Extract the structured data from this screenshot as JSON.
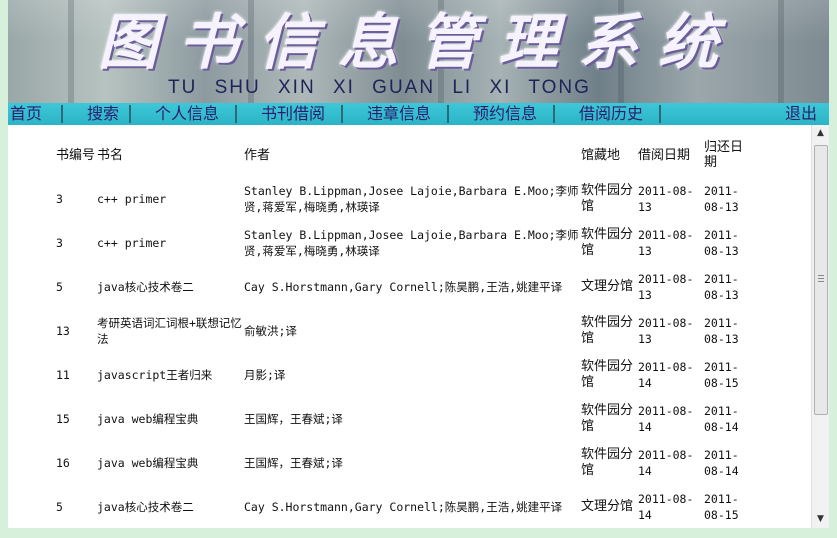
{
  "banner": {
    "title_cn": "图书信息管理系统",
    "title_pinyin": "TU SHU  XIN  XI  GUAN  LI  XI  TONG"
  },
  "nav": {
    "home": "首页",
    "search": "搜索",
    "profile": "个人信息",
    "borrow": "书刊借阅",
    "violations": "违章信息",
    "reservations": "预约信息",
    "history": "借阅历史",
    "logout": "退出"
  },
  "table": {
    "headers": {
      "id": "书编号",
      "title": "书名",
      "author": "作者",
      "library": "馆藏地",
      "borrow_date": "借阅日期",
      "return_date": "归还日期"
    },
    "rows": [
      {
        "id": "3",
        "title": "c++ primer",
        "author": "Stanley B.Lippman,Josee Lajoie,Barbara E.Moo;李师贤,蒋爱军,梅晓勇,林瑛译",
        "library": "软件园分馆",
        "borrow_date": "2011-08-13",
        "return_date": "2011-08-13"
      },
      {
        "id": "3",
        "title": "c++ primer",
        "author": "Stanley B.Lippman,Josee Lajoie,Barbara E.Moo;李师贤,蒋爱军,梅晓勇,林瑛译",
        "library": "软件园分馆",
        "borrow_date": "2011-08-13",
        "return_date": "2011-08-13"
      },
      {
        "id": "5",
        "title": "java核心技术卷二",
        "author": "Cay S.Horstmann,Gary Cornell;陈昊鹏,王浩,姚建平译",
        "library": "文理分馆",
        "borrow_date": "2011-08-13",
        "return_date": "2011-08-13"
      },
      {
        "id": "13",
        "title": "考研英语词汇词根+联想记忆法",
        "author": "俞敏洪;译",
        "library": "软件园分馆",
        "borrow_date": "2011-08-13",
        "return_date": "2011-08-13"
      },
      {
        "id": "11",
        "title": "javascript王者归来",
        "author": "月影;译",
        "library": "软件园分馆",
        "borrow_date": "2011-08-14",
        "return_date": "2011-08-15"
      },
      {
        "id": "15",
        "title": "java web编程宝典",
        "author": "王国辉，王春斌;译",
        "library": "软件园分馆",
        "borrow_date": "2011-08-14",
        "return_date": "2011-08-14"
      },
      {
        "id": "16",
        "title": "java web编程宝典",
        "author": "王国辉，王春斌;译",
        "library": "软件园分馆",
        "borrow_date": "2011-08-14",
        "return_date": "2011-08-14"
      },
      {
        "id": "5",
        "title": "java核心技术卷二",
        "author": "Cay S.Horstmann,Gary Cornell;陈昊鹏,王浩,姚建平译",
        "library": "文理分馆",
        "borrow_date": "2011-08-14",
        "return_date": "2011-08-15"
      }
    ]
  },
  "scrollbar": {
    "up_icon": "triangle-up",
    "down_icon": "triangle-down"
  }
}
